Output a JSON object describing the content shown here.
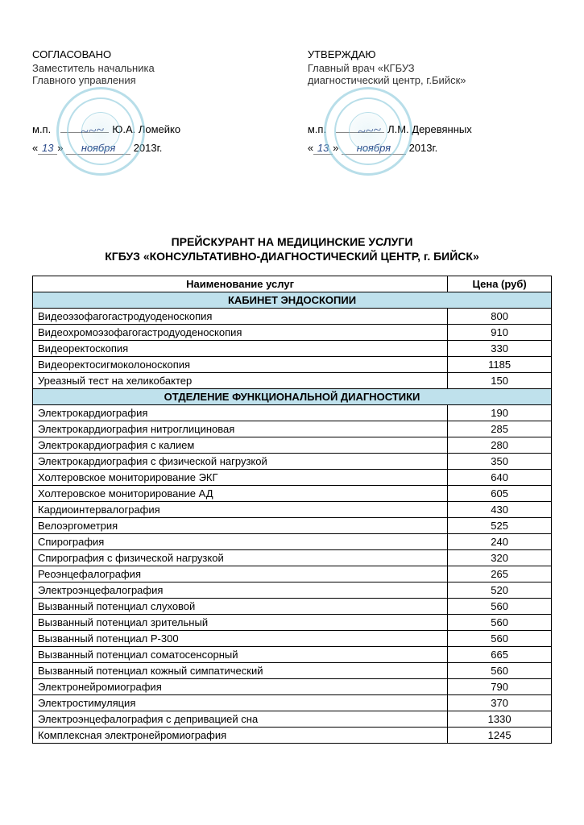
{
  "approvals": {
    "left": {
      "title": "СОГЛАСОВАНО",
      "role_line1": "Заместитель начальника",
      "role_line2": "Главного управления",
      "mp": "м.п.",
      "name": "Ю.А. Ломейко",
      "day": "13",
      "month": "ноября",
      "year": "2013г."
    },
    "right": {
      "title": "УТВЕРЖДАЮ",
      "role_line1": "Главный врач «КГБУЗ",
      "role_line2": "диагностический центр, г.Бийск»",
      "mp": "м.п.",
      "name": "Л.М. Деревянных",
      "day": "13",
      "month": "ноября",
      "year": "2013г."
    }
  },
  "doc_title": "ПРЕЙСКУРАНТ НА МЕДИЦИНСКИЕ УСЛУГИ",
  "doc_subtitle": "КГБУЗ «КОНСУЛЬТАТИВНО-ДИАГНОСТИЧЕСКИЙ ЦЕНТР, г. БИЙСК»",
  "columns": {
    "name": "Наименование услуг",
    "price": "Цена (руб)"
  },
  "colors": {
    "section_bg": "#bfe1ec",
    "border": "#000000",
    "stamp": "#7fc4d8",
    "handwriting": "#2a4a8a"
  },
  "sections": [
    {
      "title": "КАБИНЕТ ЭНДОСКОПИИ",
      "rows": [
        {
          "name": "Видеоэзофагогастродуоденоскопия",
          "price": "800"
        },
        {
          "name": "Видеохромоэзофагогастродуоденоскопия",
          "price": "910"
        },
        {
          "name": "Видеоректоскопия",
          "price": "330"
        },
        {
          "name": "Видеоректосигмоколоноскопия",
          "price": "1185"
        },
        {
          "name": "Уреазный тест на хеликобактер",
          "price": "150"
        }
      ]
    },
    {
      "title": "ОТДЕЛЕНИЕ ФУНКЦИОНАЛЬНОЙ ДИАГНОСТИКИ",
      "rows": [
        {
          "name": "Электрокардиография",
          "price": "190"
        },
        {
          "name": "Электрокардиография нитроглициновая",
          "price": "285"
        },
        {
          "name": "Электрокардиография с калием",
          "price": "280"
        },
        {
          "name": "Электрокардиография с физической нагрузкой",
          "price": "350"
        },
        {
          "name": "Холтеровское мониторирование ЭКГ",
          "price": "640"
        },
        {
          "name": "Холтеровское мониторирование АД",
          "price": "605"
        },
        {
          "name": "Кардиоинтервалография",
          "price": "430"
        },
        {
          "name": "Велоэргометрия",
          "price": "525"
        },
        {
          "name": "Спирография",
          "price": "240"
        },
        {
          "name": "Спирография с физической нагрузкой",
          "price": "320"
        },
        {
          "name": "Реоэнцефалография",
          "price": "265"
        },
        {
          "name": "Электроэнцефалография",
          "price": "520"
        },
        {
          "name": "Вызванный потенциал слуховой",
          "price": "560"
        },
        {
          "name": "Вызванный потенциал зрительный",
          "price": "560"
        },
        {
          "name": "Вызванный потенциал Р-300",
          "price": "560"
        },
        {
          "name": "Вызванный потенциал соматосенсорный",
          "price": "665"
        },
        {
          "name": "Вызванный потенциал кожный симпатический",
          "price": "560"
        },
        {
          "name": "Электронейромиография",
          "price": "790"
        },
        {
          "name": "Электростимуляция",
          "price": "370"
        },
        {
          "name": "Электроэнцефалография с депривацией сна",
          "price": "1330"
        },
        {
          "name": "Комплексная электронейромиография",
          "price": "1245"
        }
      ]
    }
  ]
}
